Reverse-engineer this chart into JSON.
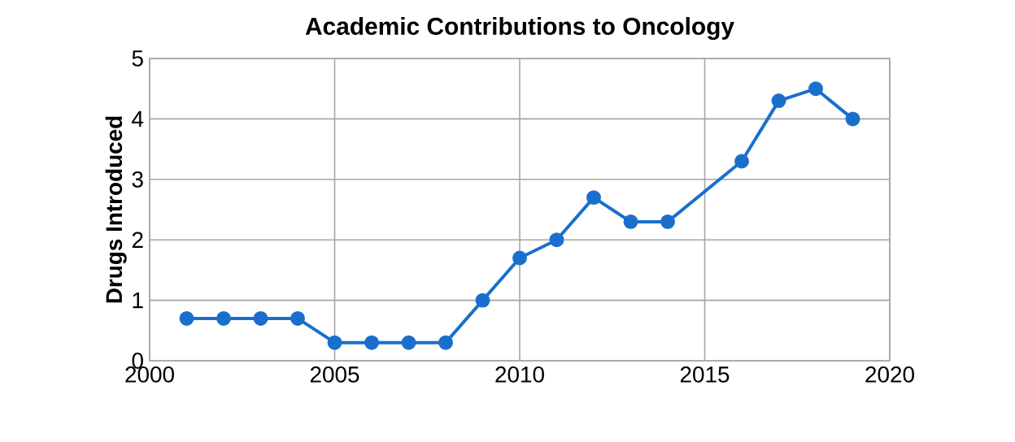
{
  "chart_data": {
    "type": "line",
    "title": "Academic Contributions to Oncology",
    "ylabel": "Drugs Introduced",
    "x": [
      2001,
      2002,
      2003,
      2004,
      2005,
      2006,
      2007,
      2008,
      2009,
      2010,
      2011,
      2012,
      2013,
      2014,
      2016,
      2017,
      2018,
      2019
    ],
    "values": [
      0.7,
      0.7,
      0.7,
      0.7,
      0.3,
      0.3,
      0.3,
      0.3,
      1,
      1.7,
      2,
      2.7,
      2.3,
      2.3,
      3.3,
      4.3,
      4.5,
      4
    ],
    "color": "#1a6fcc",
    "xlim": [
      2000,
      2020
    ],
    "ylim": [
      0,
      5
    ],
    "xticks": [
      2000,
      2005,
      2010,
      2015,
      2020
    ],
    "yticks": [
      0,
      1,
      2,
      3,
      4,
      5
    ],
    "grid": true,
    "marker": "circle",
    "line_style": "solid"
  }
}
